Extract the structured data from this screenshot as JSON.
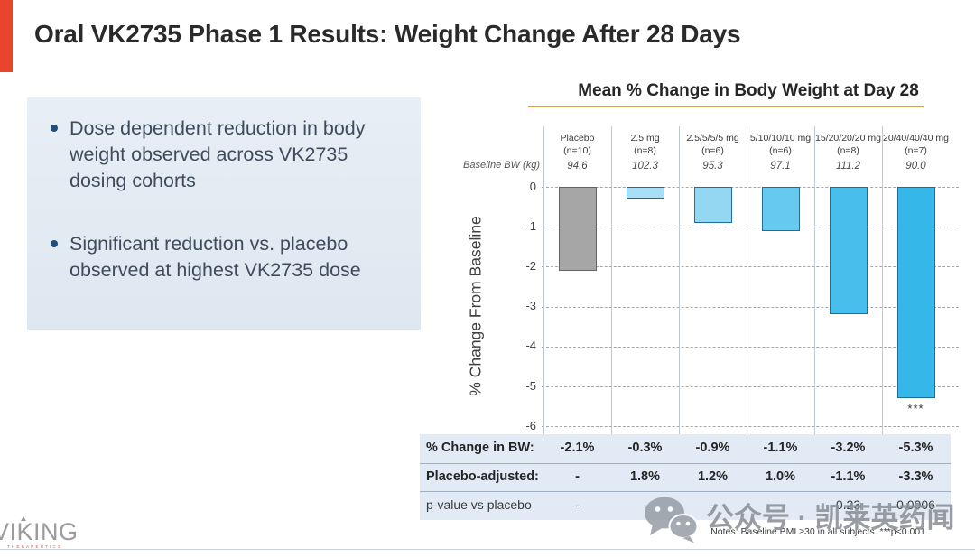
{
  "slide": {
    "title": "Oral VK2735 Phase 1 Results: Weight Change After 28 Days",
    "bullets": [
      "Dose dependent reduction in body weight observed across VK2735 dosing cohorts",
      "Significant reduction vs. placebo observed at highest VK2735 dose"
    ]
  },
  "colors": {
    "accent_bar": "#E8452C",
    "title_underline_gold": "#D2A43C",
    "info_box_bg": "#E8EEF5",
    "table_bg": "#E2EBF5"
  },
  "chart": {
    "title": "Mean % Change in Body Weight at Day 28",
    "y_axis_label": "% Change From Baseline",
    "baseline_row_label": "Baseline BW (kg)",
    "y_ticks": [
      0,
      -1,
      -2,
      -3,
      -4,
      -5,
      -6
    ],
    "columns": [
      {
        "dose": "Placebo",
        "n": "(n=10)",
        "baseline_bw": "94.6",
        "value": -2.1,
        "fill": "#A6A6A6",
        "border": "#636363",
        "sig": ""
      },
      {
        "dose": "2.5 mg",
        "n": "(n=8)",
        "baseline_bw": "102.3",
        "value": -0.3,
        "fill": "#A9DFF6",
        "border": "#1d6f99",
        "sig": ""
      },
      {
        "dose": "2.5/5/5/5 mg",
        "n": "(n=6)",
        "baseline_bw": "95.3",
        "value": -0.9,
        "fill": "#93D7F3",
        "border": "#1d6f99",
        "sig": ""
      },
      {
        "dose": "5/10/10/10 mg",
        "n": "(n=6)",
        "baseline_bw": "97.1",
        "value": -1.1,
        "fill": "#66C9EF",
        "border": "#1d6f99",
        "sig": ""
      },
      {
        "dose": "15/20/20/20 mg",
        "n": "(n=8)",
        "baseline_bw": "111.2",
        "value": -3.2,
        "fill": "#47BEEB",
        "border": "#1d6f99",
        "sig": ""
      },
      {
        "dose": "20/40/40/40 mg",
        "n": "(n=7)",
        "baseline_bw": "90.0",
        "value": -5.3,
        "fill": "#35B8E9",
        "border": "#1d6f99",
        "sig": "***"
      }
    ]
  },
  "table": {
    "rows": [
      {
        "label": "% Change in BW:",
        "style": "bold",
        "values": [
          "-2.1%",
          "-0.3%",
          "-0.9%",
          "-1.1%",
          "-3.2%",
          "-5.3%"
        ]
      },
      {
        "label": "Placebo-adjusted:",
        "style": "bold",
        "values": [
          "-",
          "1.8%",
          "1.2%",
          "1.0%",
          "-1.1%",
          "-3.3%"
        ]
      },
      {
        "label": "p-value vs placebo",
        "style": "plain",
        "values": [
          "-",
          "-",
          "-",
          "-",
          "0.23",
          "0.0006"
        ]
      }
    ]
  },
  "notes": "Notes:  Baseline BMI ≥30 in all subjects. ***p<0.001",
  "logo": {
    "name": "VIKING",
    "sub": "THERAPEUTICS"
  },
  "watermark": {
    "icon": "wechat-icon",
    "text": "公众号 · 凯莱英药闻"
  },
  "chart_data": {
    "type": "bar",
    "title": "Mean % Change in Body Weight at Day 28",
    "xlabel": "",
    "ylabel": "% Change From Baseline",
    "ylim": [
      -6,
      0
    ],
    "grid": "dashed horizontal",
    "categories": [
      "Placebo (n=10)",
      "2.5 mg (n=8)",
      "2.5/5/5/5 mg (n=6)",
      "5/10/10/10 mg (n=6)",
      "15/20/20/20 mg (n=8)",
      "20/40/40/40 mg (n=7)"
    ],
    "values": [
      -2.1,
      -0.3,
      -0.9,
      -1.1,
      -3.2,
      -5.3
    ],
    "baseline_bw_kg": [
      94.6,
      102.3,
      95.3,
      97.1,
      111.2,
      90.0
    ],
    "placebo_adjusted_pct": [
      "-",
      "1.8",
      "1.2",
      "1.0",
      "-1.1",
      "-3.3"
    ],
    "p_value_vs_placebo": [
      "-",
      "-",
      "-",
      "-",
      "0.23",
      "0.0006"
    ],
    "annotations": [
      "*** below 20/40/40/40 mg bar indicates p<0.001"
    ]
  }
}
